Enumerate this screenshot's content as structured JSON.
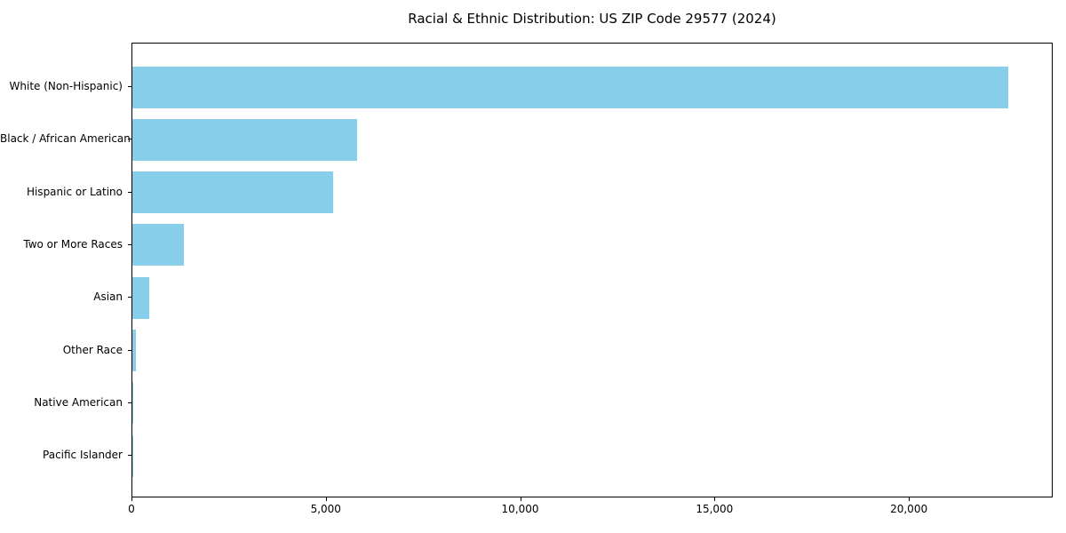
{
  "title": "Racial & Ethnic Distribution: US ZIP Code 29577 (2024)",
  "chart_data": {
    "type": "bar",
    "orientation": "horizontal",
    "title": "Racial & Ethnic Distribution: US ZIP Code 29577 (2024)",
    "categories": [
      "White (Non-Hispanic)",
      "Black / African American",
      "Hispanic or Latino",
      "Two or More Races",
      "Asian",
      "Other Race",
      "Native American",
      "Pacific Islander"
    ],
    "values": [
      22580,
      5790,
      5180,
      1335,
      445,
      95,
      15,
      5
    ],
    "bar_color": "#87CEEB",
    "xlabel": "",
    "ylabel": "",
    "xlim": [
      0,
      23700
    ],
    "x_ticks": [
      {
        "value": 0,
        "label": "0"
      },
      {
        "value": 5000,
        "label": "5,000"
      },
      {
        "value": 10000,
        "label": "10,000"
      },
      {
        "value": 15000,
        "label": "15,000"
      },
      {
        "value": 20000,
        "label": "20,000"
      }
    ],
    "grid": false,
    "legend_position": "none"
  }
}
